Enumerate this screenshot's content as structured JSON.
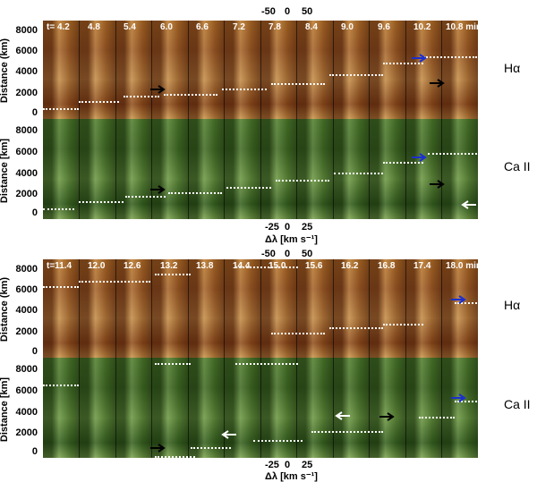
{
  "figure": {
    "line_halpha": "Hα",
    "line_caii": "Ca II",
    "ylabel": "Distance (km)",
    "ylabel_lower": "Distance [km]",
    "yticks": [
      "8000",
      "6000",
      "4000",
      "2000",
      "0"
    ],
    "top_axis_ticks": [
      "-50",
      "0",
      "50"
    ],
    "bottom_axis_ticks": [
      "-25",
      "0",
      "25"
    ],
    "xlabel": "Δλ [km s⁻¹]"
  },
  "block_top": {
    "times": [
      "t= 4.2",
      "4.8",
      "5.4",
      "6.0",
      "6.6",
      "7.2",
      "7.8",
      "8.4",
      "9.0",
      "9.6",
      "10.2",
      "10.8 min"
    ]
  },
  "block_bottom": {
    "times": [
      "t=11.4",
      "12.0",
      "12.6",
      "13.2",
      "13.8",
      "14.4",
      "15.0",
      "15.6",
      "16.2",
      "16.8",
      "17.4",
      "18.0 min"
    ]
  },
  "colors": {
    "arrow_black": "#000000",
    "arrow_blue": "#1a2fd0",
    "arrow_white": "#ffffff"
  }
}
